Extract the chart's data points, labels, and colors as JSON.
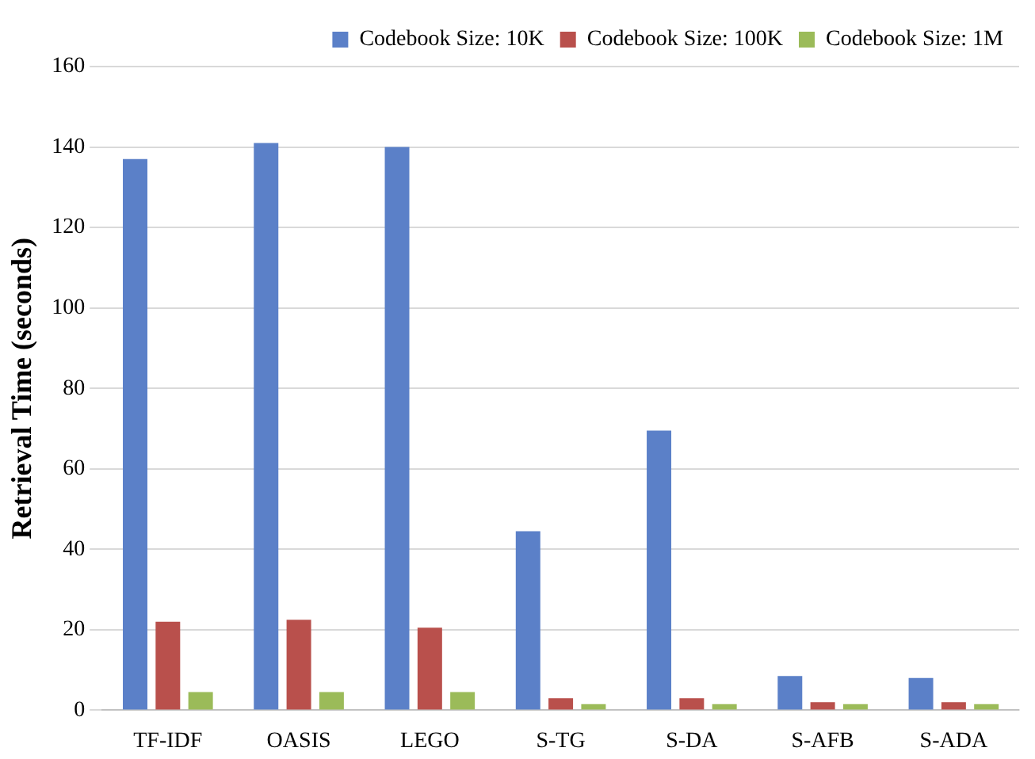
{
  "chart_data": {
    "type": "bar",
    "ylabel": "Retrieval Time (seconds)",
    "categories": [
      "TF-IDF",
      "OASIS",
      "LEGO",
      "S-TG",
      "S-DA",
      "S-AFB",
      "S-ADA"
    ],
    "series": [
      {
        "name": "Codebook Size: 10K",
        "color": "#5b80c8",
        "values": [
          137,
          141,
          140,
          44.5,
          69.5,
          8.5,
          8
        ]
      },
      {
        "name": "Codebook Size: 100K",
        "color": "#b9504c",
        "values": [
          22,
          22.5,
          20.5,
          3,
          3,
          2,
          2
        ]
      },
      {
        "name": "Codebook Size: 1M",
        "color": "#9bbb59",
        "values": [
          4.5,
          4.5,
          4.5,
          1.5,
          1.5,
          1.5,
          1.5
        ]
      }
    ],
    "ylim": [
      0,
      160
    ],
    "yticks": [
      0,
      20,
      40,
      60,
      80,
      100,
      120,
      140,
      160
    ],
    "grid": "y",
    "legend": "top right"
  }
}
